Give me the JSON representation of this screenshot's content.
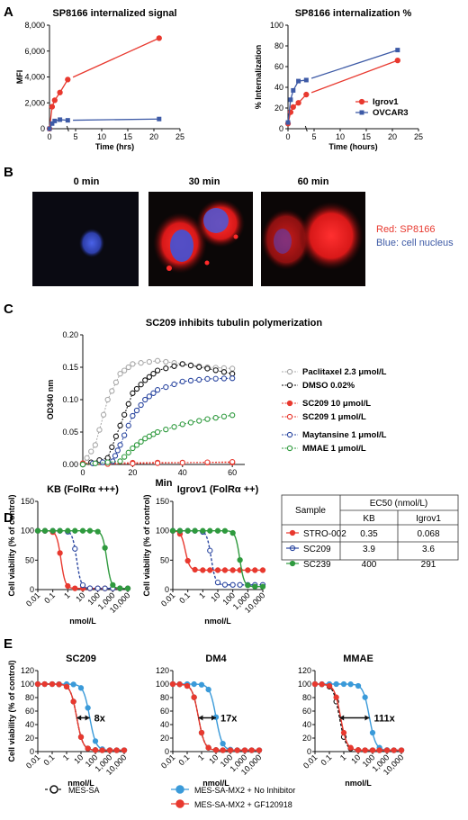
{
  "panels": {
    "A": "A",
    "B": "B",
    "C": "C",
    "D": "D",
    "E": "E"
  },
  "colors": {
    "red": "#e8392f",
    "blue": "#3d5aa6",
    "navy": "#2a46a0",
    "green": "#2f9a3e",
    "gray": "#a8a8a8",
    "black": "#111111",
    "sky": "#3a9ad9"
  },
  "chart_data": [
    {
      "id": "A1",
      "type": "line",
      "title": "SP8166 internalized signal",
      "xlabel": "Time (hrs)",
      "ylabel": "MFI",
      "xlim": [
        0,
        25
      ],
      "ylim": [
        0,
        8000
      ],
      "xticks": [
        "0",
        "5",
        "10",
        "15",
        "20",
        "25"
      ],
      "yticks": [
        "0",
        "2,000",
        "4,000",
        "6,000",
        "8,000"
      ],
      "x_break": [
        3.5,
        4.5
      ],
      "series": [
        {
          "color": "red",
          "x": [
            0,
            0.5,
            1,
            2,
            3.5,
            21
          ],
          "y": [
            0,
            1700,
            2200,
            2800,
            3800,
            7000
          ]
        },
        {
          "color": "blue",
          "x": [
            0,
            0.5,
            1,
            2,
            3.5,
            21
          ],
          "y": [
            0,
            400,
            600,
            700,
            650,
            750
          ]
        }
      ]
    },
    {
      "id": "A2",
      "type": "line",
      "title": "SP8166 internalization %",
      "xlabel": "Time (hours)",
      "ylabel": "% Internalization",
      "xlim": [
        0,
        25
      ],
      "ylim": [
        0,
        100
      ],
      "xticks": [
        "0",
        "5",
        "10",
        "15",
        "20",
        "25"
      ],
      "yticks": [
        "0",
        "20",
        "40",
        "60",
        "80",
        "100"
      ],
      "x_break": [
        3.5,
        4.5
      ],
      "legend": "bottom-right",
      "series": [
        {
          "name": "Igrov1",
          "color": "red",
          "x": [
            0,
            0.5,
            1,
            2,
            3.5,
            21
          ],
          "y": [
            5,
            16,
            21,
            25,
            33,
            66
          ]
        },
        {
          "name": "OVCAR3",
          "color": "blue",
          "x": [
            0,
            0.5,
            1,
            2,
            3.5,
            21
          ],
          "y": [
            6,
            28,
            37,
            46,
            47,
            76
          ]
        }
      ]
    },
    {
      "id": "C",
      "type": "line",
      "title": "SC209 inhibits tubulin polymerization",
      "xlabel": "Min",
      "ylabel": "OD340 nm",
      "xlim": [
        0,
        65
      ],
      "ylim": [
        0,
        0.2
      ],
      "xticks": [
        "0",
        "20",
        "40",
        "60"
      ],
      "yticks": [
        "0.00",
        "0.05",
        "0.10",
        "0.15",
        "0.20"
      ],
      "series": [
        {
          "name": "Paclitaxel 2.3 μmol/L",
          "color": "gray",
          "open": true,
          "x": [
            0,
            5,
            10,
            15,
            20,
            30,
            40,
            50,
            60
          ],
          "y": [
            0,
            0.03,
            0.1,
            0.14,
            0.155,
            0.16,
            0.155,
            0.15,
            0.148
          ]
        },
        {
          "name": "DMSO 0.02%",
          "color": "black",
          "open": true,
          "x": [
            0,
            10,
            15,
            20,
            25,
            30,
            40,
            50,
            60
          ],
          "y": [
            0,
            0.01,
            0.06,
            0.11,
            0.13,
            0.145,
            0.155,
            0.148,
            0.14
          ]
        },
        {
          "name": "SC209 10 μmol/L",
          "color": "red",
          "open": false,
          "x": [
            0,
            30,
            60
          ],
          "y": [
            0.002,
            0.003,
            0.003
          ]
        },
        {
          "name": "SC209 1 μmol/L",
          "color": "red",
          "open": true,
          "x": [
            0,
            30,
            60
          ],
          "y": [
            0.0,
            0.002,
            0.004
          ]
        },
        {
          "name": "Maytansine 1 μmol/L",
          "color": "navy",
          "open": true,
          "x": [
            0,
            12,
            15,
            20,
            25,
            30,
            40,
            50,
            60
          ],
          "y": [
            0,
            0.005,
            0.03,
            0.075,
            0.1,
            0.115,
            0.128,
            0.132,
            0.133
          ]
        },
        {
          "name": "MMAE 1 μmol/L",
          "color": "green",
          "open": true,
          "x": [
            0,
            15,
            20,
            25,
            30,
            40,
            50,
            60
          ],
          "y": [
            0,
            0.005,
            0.025,
            0.04,
            0.05,
            0.062,
            0.07,
            0.076
          ]
        }
      ]
    },
    {
      "id": "D1",
      "type": "line",
      "title": "KB (FolRα +++)",
      "xlabel": "nmol/L",
      "ylabel": "Cell viability (% of control)",
      "xscale": "log",
      "xlim": [
        0.01,
        10000
      ],
      "ylim": [
        0,
        150
      ],
      "xticks": [
        "0.01",
        "0.1",
        "1",
        "10",
        "100",
        "1,000",
        "10,000"
      ],
      "yticks": [
        "0",
        "50",
        "100",
        "150"
      ],
      "series": [
        {
          "name": "STRO-002",
          "color": "red",
          "open": false,
          "ec50": 0.35,
          "bottom": 2
        },
        {
          "name": "SC209",
          "color": "navy",
          "open": true,
          "ec50": 3.9,
          "bottom": 2
        },
        {
          "name": "SC239",
          "color": "green",
          "open": false,
          "ec50": 400,
          "bottom": 2
        }
      ]
    },
    {
      "id": "D2",
      "type": "line",
      "title": "Igrov1 (FolRα ++)",
      "xlabel": "nmol/L",
      "ylabel": "Cell viability (% of control)",
      "xscale": "log",
      "xlim": [
        0.01,
        10000
      ],
      "ylim": [
        0,
        150
      ],
      "xticks": [
        "0.01",
        "0.1",
        "1",
        "10",
        "100",
        "1,000",
        "10,000"
      ],
      "yticks": [
        "0",
        "50",
        "100",
        "150"
      ],
      "series": [
        {
          "name": "STRO-002",
          "color": "red",
          "open": false,
          "ec50": 0.068,
          "bottom": 33
        },
        {
          "name": "SC209",
          "color": "navy",
          "open": true,
          "ec50": 3.6,
          "bottom": 8
        },
        {
          "name": "SC239",
          "color": "green",
          "open": false,
          "ec50": 291,
          "bottom": 5
        }
      ]
    },
    {
      "id": "E1",
      "type": "line",
      "title": "SC209",
      "xlabel": "nmol/L",
      "ylabel": "Cell viability (% of control)",
      "xscale": "log",
      "xlim": [
        0.01,
        10000
      ],
      "ylim": [
        0,
        120
      ],
      "xticks": [
        "0.01",
        "0.1",
        "1",
        "10",
        "100",
        "1,000",
        "10,000"
      ],
      "yticks": [
        "0",
        "20",
        "40",
        "60",
        "80",
        "100",
        "120"
      ],
      "fold": "8x",
      "series": [
        {
          "name": "MES-SA",
          "color": "black",
          "open": true,
          "ec50": 5
        },
        {
          "name": "MES-SA-MX2 + No Inhibitor",
          "color": "sky",
          "open": false,
          "ec50": 40
        },
        {
          "name": "MES-SA-MX2 + GF120918",
          "color": "red",
          "open": false,
          "ec50": 5
        }
      ]
    },
    {
      "id": "E2",
      "type": "line",
      "title": "DM4",
      "xlabel": "nmol/L",
      "ylabel": "",
      "xscale": "log",
      "xlim": [
        0.01,
        10000
      ],
      "ylim": [
        0,
        120
      ],
      "xticks": [
        "0.01",
        "0.1",
        "1",
        "10",
        "100",
        "1,000",
        "10,000"
      ],
      "yticks": [
        "0",
        "20",
        "40",
        "60",
        "80",
        "100",
        "120"
      ],
      "fold": "17x",
      "series": [
        {
          "name": "MES-SA",
          "color": "black",
          "open": true,
          "ec50": 0.6
        },
        {
          "name": "MES-SA-MX2 + No Inhibitor",
          "color": "sky",
          "open": false,
          "ec50": 10
        },
        {
          "name": "MES-SA-MX2 + GF120918",
          "color": "red",
          "open": false,
          "ec50": 0.6
        }
      ]
    },
    {
      "id": "E3",
      "type": "line",
      "title": "MMAE",
      "xlabel": "nmol/L",
      "ylabel": "",
      "xscale": "log",
      "xlim": [
        0.01,
        10000
      ],
      "ylim": [
        0,
        120
      ],
      "xticks": [
        "0.01",
        "0.1",
        "1",
        "10",
        "100",
        "1,000",
        "10,000"
      ],
      "yticks": [
        "0",
        "20",
        "40",
        "60",
        "80",
        "100",
        "120"
      ],
      "fold": "111x",
      "series": [
        {
          "name": "MES-SA",
          "color": "black",
          "open": true,
          "ec50": 0.5
        },
        {
          "name": "MES-SA-MX2 + No Inhibitor",
          "color": "sky",
          "open": false,
          "ec50": 60
        },
        {
          "name": "MES-SA-MX2 + GF120918",
          "color": "red",
          "open": false,
          "ec50": 0.6
        }
      ]
    }
  ],
  "microscopy": {
    "labels": [
      "0 min",
      "30 min",
      "60 min"
    ],
    "legend_red": "Red: SP8166",
    "legend_blue": "Blue: cell nucleus"
  },
  "ec50_table": {
    "header_sample": "Sample",
    "header_ec50": "EC50 (nmol/L)",
    "col1": "KB",
    "col2": "Igrov1",
    "rows": [
      {
        "sample": "STRO-002",
        "color": "red",
        "open": false,
        "kb": "0.35",
        "igrov1": "0.068"
      },
      {
        "sample": "SC209",
        "color": "navy",
        "open": true,
        "kb": "3.9",
        "igrov1": "3.6"
      },
      {
        "sample": "SC239",
        "color": "green",
        "open": false,
        "kb": "400",
        "igrov1": "291"
      }
    ]
  },
  "e_legend": [
    "MES-SA",
    "MES-SA-MX2 + No Inhibitor",
    "MES-SA-MX2 + GF120918"
  ]
}
